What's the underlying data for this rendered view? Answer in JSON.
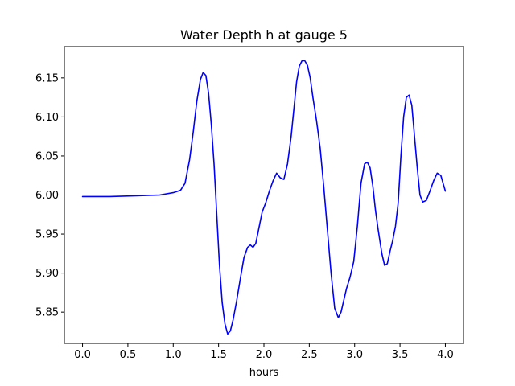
{
  "chart_data": {
    "type": "line",
    "title": "Water Depth h at gauge 5",
    "xlabel": "hours",
    "ylabel": "",
    "xlim": [
      -0.2,
      4.2
    ],
    "ylim": [
      5.81,
      6.19
    ],
    "grid": false,
    "x_ticks": [
      0.0,
      0.5,
      1.0,
      1.5,
      2.0,
      2.5,
      3.0,
      3.5,
      4.0
    ],
    "x_tick_labels": [
      "0.0",
      "0.5",
      "1.0",
      "1.5",
      "2.0",
      "2.5",
      "3.0",
      "3.5",
      "4.0"
    ],
    "y_ticks": [
      5.85,
      5.9,
      5.95,
      6.0,
      6.05,
      6.1,
      6.15
    ],
    "y_tick_labels": [
      "5.85",
      "5.90",
      "5.95",
      "6.00",
      "6.05",
      "6.10",
      "6.15"
    ],
    "series": [
      {
        "color": "#0000ff",
        "x": [
          0.0,
          0.3,
          0.6,
          0.85,
          1.0,
          1.08,
          1.13,
          1.18,
          1.22,
          1.26,
          1.3,
          1.33,
          1.36,
          1.39,
          1.42,
          1.45,
          1.48,
          1.51,
          1.54,
          1.57,
          1.6,
          1.63,
          1.66,
          1.7,
          1.74,
          1.78,
          1.82,
          1.85,
          1.88,
          1.91,
          1.94,
          1.98,
          2.02,
          2.06,
          2.1,
          2.14,
          2.18,
          2.22,
          2.26,
          2.3,
          2.33,
          2.36,
          2.39,
          2.42,
          2.45,
          2.48,
          2.51,
          2.54,
          2.58,
          2.62,
          2.66,
          2.7,
          2.74,
          2.78,
          2.82,
          2.85,
          2.88,
          2.91,
          2.95,
          2.99,
          3.03,
          3.07,
          3.11,
          3.14,
          3.17,
          3.2,
          3.23,
          3.26,
          3.3,
          3.33,
          3.36,
          3.39,
          3.42,
          3.45,
          3.48,
          3.51,
          3.54,
          3.57,
          3.6,
          3.63,
          3.66,
          3.69,
          3.72,
          3.75,
          3.79,
          3.83,
          3.87,
          3.91,
          3.95,
          3.98,
          4.0
        ],
        "y": [
          5.998,
          5.998,
          5.999,
          6.0,
          6.003,
          6.006,
          6.015,
          6.045,
          6.08,
          6.12,
          6.148,
          6.157,
          6.153,
          6.13,
          6.09,
          6.04,
          5.975,
          5.91,
          5.862,
          5.835,
          5.822,
          5.826,
          5.84,
          5.865,
          5.893,
          5.92,
          5.933,
          5.936,
          5.933,
          5.938,
          5.955,
          5.978,
          5.99,
          6.005,
          6.018,
          6.028,
          6.022,
          6.02,
          6.04,
          6.075,
          6.11,
          6.145,
          6.165,
          6.172,
          6.172,
          6.166,
          6.15,
          6.125,
          6.095,
          6.06,
          6.01,
          5.955,
          5.9,
          5.855,
          5.843,
          5.85,
          5.865,
          5.88,
          5.895,
          5.915,
          5.96,
          6.015,
          6.04,
          6.042,
          6.035,
          6.012,
          5.98,
          5.955,
          5.925,
          5.91,
          5.912,
          5.928,
          5.942,
          5.96,
          5.99,
          6.05,
          6.1,
          6.125,
          6.128,
          6.115,
          6.075,
          6.035,
          6.0,
          5.991,
          5.993,
          6.005,
          6.018,
          6.028,
          6.025,
          6.013,
          6.005
        ]
      }
    ]
  }
}
